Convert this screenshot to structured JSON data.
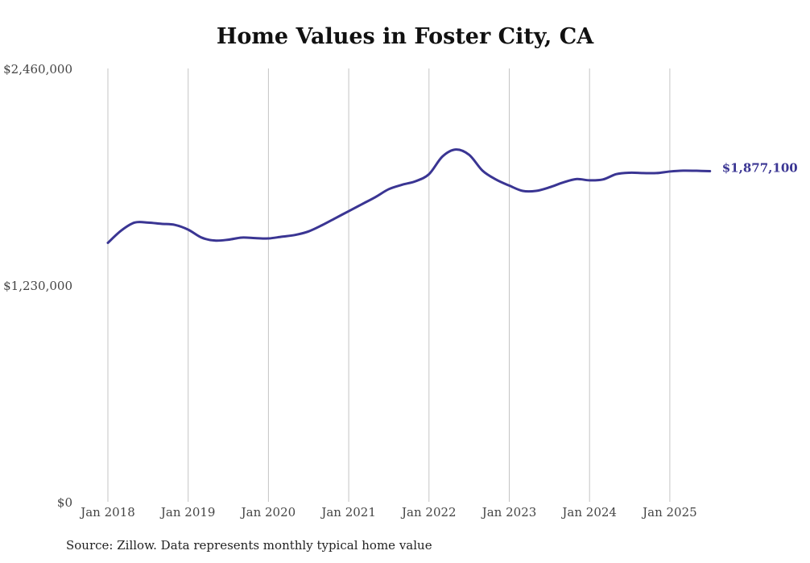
{
  "chart_data": {
    "type": "line",
    "title": "Home Values in Foster City, CA",
    "xlabel": "",
    "ylabel": "",
    "ylim": [
      0,
      2460000
    ],
    "y_ticks": [
      {
        "value": 0,
        "label": "$0"
      },
      {
        "value": 1230000,
        "label": "$1,230,000"
      },
      {
        "value": 2460000,
        "label": "$2,460,000"
      }
    ],
    "x_ticks": [
      {
        "value": "2018-01",
        "label": "Jan 2018"
      },
      {
        "value": "2019-01",
        "label": "Jan 2019"
      },
      {
        "value": "2020-01",
        "label": "Jan 2020"
      },
      {
        "value": "2021-01",
        "label": "Jan 2021"
      },
      {
        "value": "2022-01",
        "label": "Jan 2022"
      },
      {
        "value": "2023-01",
        "label": "Jan 2023"
      },
      {
        "value": "2024-01",
        "label": "Jan 2024"
      },
      {
        "value": "2025-01",
        "label": "Jan 2025"
      }
    ],
    "grid": {
      "vertical": true,
      "horizontal": false
    },
    "series": [
      {
        "color": "#3a3593",
        "x": [
          "2018-01",
          "2018-03",
          "2018-05",
          "2018-07",
          "2018-09",
          "2018-11",
          "2019-01",
          "2019-03",
          "2019-05",
          "2019-07",
          "2019-09",
          "2019-11",
          "2020-01",
          "2020-03",
          "2020-05",
          "2020-07",
          "2020-09",
          "2020-11",
          "2021-01",
          "2021-03",
          "2021-05",
          "2021-07",
          "2021-09",
          "2021-11",
          "2022-01",
          "2022-03",
          "2022-05",
          "2022-07",
          "2022-09",
          "2022-11",
          "2023-01",
          "2023-03",
          "2023-05",
          "2023-07",
          "2023-09",
          "2023-11",
          "2024-01",
          "2024-03",
          "2024-05",
          "2024-07",
          "2024-09",
          "2024-11",
          "2025-01",
          "2025-03",
          "2025-05",
          "2025-07"
        ],
        "values": [
          1470000,
          1540000,
          1585000,
          1585000,
          1578000,
          1572000,
          1545000,
          1500000,
          1483000,
          1488000,
          1500000,
          1497000,
          1495000,
          1505000,
          1515000,
          1535000,
          1570000,
          1610000,
          1650000,
          1690000,
          1730000,
          1775000,
          1800000,
          1820000,
          1860000,
          1960000,
          2000000,
          1970000,
          1880000,
          1830000,
          1795000,
          1765000,
          1765000,
          1785000,
          1812000,
          1832000,
          1825000,
          1830000,
          1860000,
          1868000,
          1866000,
          1866000,
          1875000,
          1880000,
          1879000,
          1877100
        ]
      }
    ],
    "end_label": "$1,877,100"
  },
  "source": "Source: Zillow. Data represents monthly typical home value"
}
